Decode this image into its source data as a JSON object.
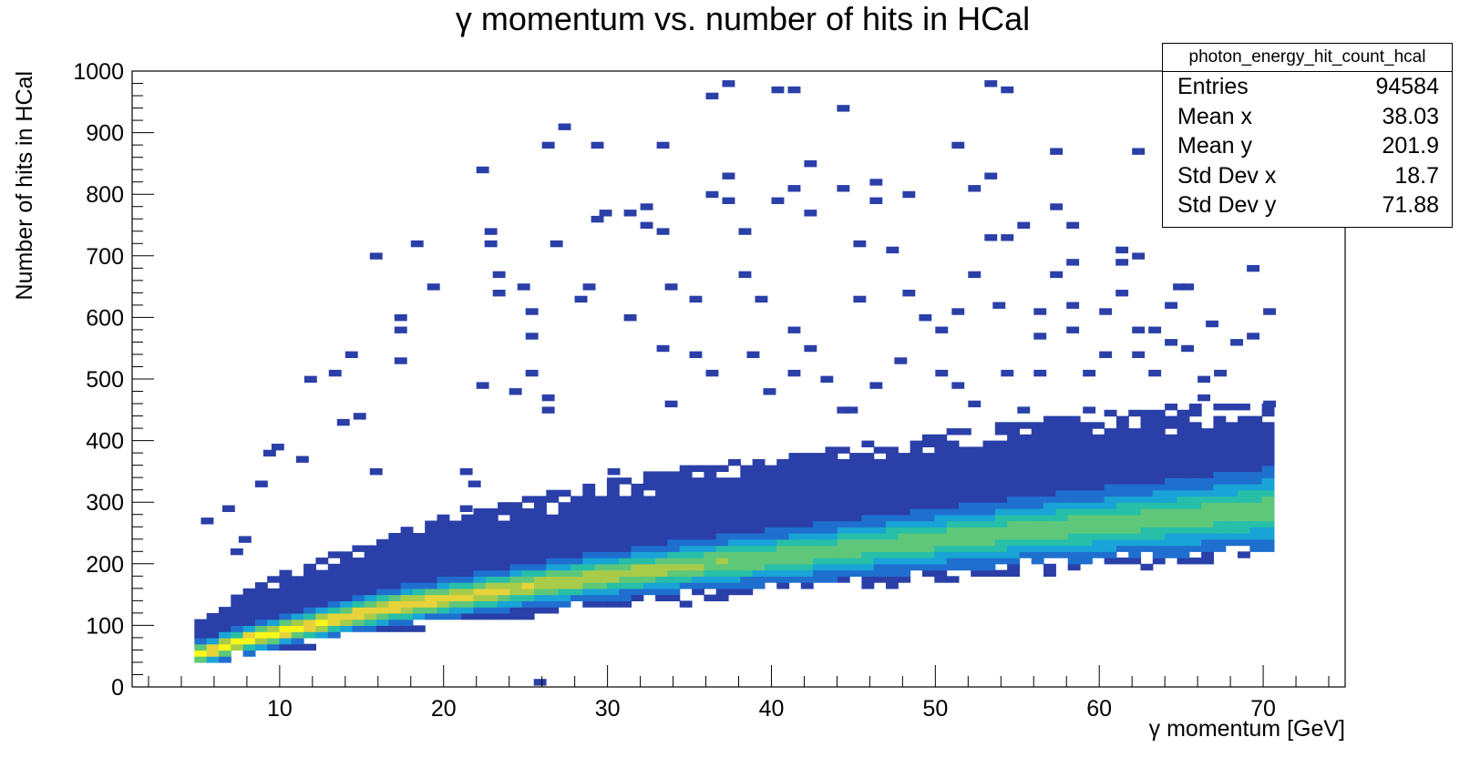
{
  "chart_data": {
    "type": "heatmap",
    "title": "γ momentum vs. number of hits in HCal",
    "xlabel": "γ momentum [GeV]",
    "ylabel": "Number of hits in HCal",
    "xlim": [
      1,
      75
    ],
    "ylim": [
      0,
      1000
    ],
    "x_ticks": [
      10,
      20,
      30,
      40,
      50,
      60,
      70
    ],
    "y_ticks": [
      0,
      100,
      200,
      300,
      400,
      500,
      600,
      700,
      800,
      900,
      1000
    ],
    "bin_width_x": 0.74,
    "bin_width_y": 10,
    "colormap": [
      "#2a3fa8",
      "#1f6fcf",
      "#1aa3d6",
      "#27bfa8",
      "#5fc77a",
      "#a8cc4a",
      "#e6d33a",
      "#f9f71a"
    ],
    "core_ridge": [
      {
        "x": 5.0,
        "y": 55
      },
      {
        "x": 6.0,
        "y": 65
      },
      {
        "x": 8.0,
        "y": 80
      },
      {
        "x": 10.0,
        "y": 92
      },
      {
        "x": 13.0,
        "y": 110
      },
      {
        "x": 16.0,
        "y": 128
      },
      {
        "x": 20.0,
        "y": 145
      },
      {
        "x": 25.0,
        "y": 165
      },
      {
        "x": 30.0,
        "y": 182
      },
      {
        "x": 35.0,
        "y": 198
      },
      {
        "x": 40.0,
        "y": 212
      },
      {
        "x": 45.0,
        "y": 226
      },
      {
        "x": 50.0,
        "y": 240
      },
      {
        "x": 55.0,
        "y": 253
      },
      {
        "x": 60.0,
        "y": 265
      },
      {
        "x": 65.0,
        "y": 277
      },
      {
        "x": 70.0,
        "y": 290
      }
    ],
    "band_halfwidth": [
      {
        "x": 5.0,
        "lo": 20,
        "hi": 60
      },
      {
        "x": 10.0,
        "lo": 35,
        "hi": 90
      },
      {
        "x": 20.0,
        "lo": 45,
        "hi": 130
      },
      {
        "x": 30.0,
        "lo": 55,
        "hi": 150
      },
      {
        "x": 40.0,
        "lo": 60,
        "hi": 160
      },
      {
        "x": 50.0,
        "lo": 65,
        "hi": 170
      },
      {
        "x": 60.0,
        "lo": 70,
        "hi": 180
      },
      {
        "x": 70.0,
        "lo": 75,
        "hi": 170
      }
    ],
    "outliers": [
      [
        5.2,
        265
      ],
      [
        6.5,
        285
      ],
      [
        7.5,
        235
      ],
      [
        8.5,
        325
      ],
      [
        9.5,
        385
      ],
      [
        11.5,
        495
      ],
      [
        13,
        505
      ],
      [
        13.5,
        425
      ],
      [
        14.5,
        435
      ],
      [
        15.5,
        345
      ],
      [
        15.5,
        695
      ],
      [
        17,
        595
      ],
      [
        17,
        575
      ],
      [
        17,
        525
      ],
      [
        18,
        715
      ],
      [
        19,
        645
      ],
      [
        21,
        285
      ],
      [
        21,
        345
      ],
      [
        21.5,
        325
      ],
      [
        22,
        485
      ],
      [
        22.5,
        735
      ],
      [
        22.5,
        715
      ],
      [
        23,
        665
      ],
      [
        23,
        635
      ],
      [
        24.5,
        645
      ],
      [
        25,
        605
      ],
      [
        25,
        565
      ],
      [
        25,
        505
      ],
      [
        26,
        465
      ],
      [
        26,
        445
      ],
      [
        28,
        625
      ],
      [
        28.5,
        645
      ],
      [
        29,
        755
      ],
      [
        29.5,
        765
      ],
      [
        30,
        345
      ],
      [
        31,
        595
      ],
      [
        31,
        765
      ],
      [
        32,
        745
      ],
      [
        32,
        775
      ],
      [
        33,
        735
      ],
      [
        33.5,
        455
      ],
      [
        33.5,
        645
      ],
      [
        35,
        625
      ],
      [
        35,
        535
      ],
      [
        36,
        505
      ],
      [
        36,
        795
      ],
      [
        37,
        825
      ],
      [
        37,
        785
      ],
      [
        38,
        735
      ],
      [
        38,
        665
      ],
      [
        38.5,
        535
      ],
      [
        39,
        625
      ],
      [
        40,
        785
      ],
      [
        41,
        575
      ],
      [
        41,
        505
      ],
      [
        41,
        805
      ],
      [
        42,
        765
      ],
      [
        42,
        545
      ],
      [
        43,
        495
      ],
      [
        44,
        445
      ],
      [
        45,
        625
      ],
      [
        45,
        715
      ],
      [
        46,
        485
      ],
      [
        47,
        705
      ],
      [
        48,
        795
      ],
      [
        48,
        635
      ],
      [
        49,
        595
      ],
      [
        50,
        505
      ],
      [
        50,
        575
      ],
      [
        51,
        605
      ],
      [
        51,
        485
      ],
      [
        52,
        665
      ],
      [
        52,
        455
      ],
      [
        53,
        825
      ],
      [
        53,
        725
      ],
      [
        54,
        725
      ],
      [
        54,
        505
      ],
      [
        55,
        745
      ],
      [
        55,
        445
      ],
      [
        56,
        605
      ],
      [
        56,
        565
      ],
      [
        56,
        505
      ],
      [
        57,
        775
      ],
      [
        57,
        665
      ],
      [
        58,
        745
      ],
      [
        58,
        685
      ],
      [
        58,
        615
      ],
      [
        58,
        575
      ],
      [
        59,
        445
      ],
      [
        59,
        505
      ],
      [
        60,
        535
      ],
      [
        60,
        605
      ],
      [
        61,
        705
      ],
      [
        61,
        685
      ],
      [
        61,
        635
      ],
      [
        62,
        695
      ],
      [
        62,
        575
      ],
      [
        62,
        535
      ],
      [
        63,
        505
      ],
      [
        63,
        575
      ],
      [
        64,
        615
      ],
      [
        64,
        555
      ],
      [
        65,
        645
      ],
      [
        65,
        545
      ],
      [
        66,
        495
      ],
      [
        66,
        465
      ],
      [
        67,
        505
      ],
      [
        68,
        555
      ],
      [
        69,
        565
      ],
      [
        69,
        675
      ],
      [
        70,
        605
      ],
      [
        70,
        455
      ],
      [
        14,
        535
      ],
      [
        11,
        365
      ],
      [
        9,
        375
      ],
      [
        7,
        215
      ],
      [
        24,
        475
      ],
      [
        26.5,
        715
      ],
      [
        33,
        545
      ],
      [
        39.5,
        475
      ],
      [
        44.5,
        445
      ],
      [
        47.5,
        525
      ],
      [
        53.5,
        615
      ],
      [
        64.5,
        645
      ],
      [
        66.5,
        585
      ],
      [
        27,
        905
      ],
      [
        26,
        875
      ],
      [
        29,
        875
      ],
      [
        33,
        875
      ],
      [
        36,
        955
      ],
      [
        37,
        975
      ],
      [
        40,
        965
      ],
      [
        41,
        965
      ],
      [
        44,
        935
      ],
      [
        46,
        815
      ],
      [
        46,
        785
      ],
      [
        51,
        875
      ],
      [
        53,
        975
      ],
      [
        54,
        965
      ],
      [
        57,
        865
      ],
      [
        62,
        865
      ],
      [
        68,
        845
      ],
      [
        52,
        805
      ],
      [
        42,
        845
      ],
      [
        22,
        835
      ],
      [
        44,
        805
      ],
      [
        25.5,
        3
      ]
    ]
  },
  "stats_box": {
    "title": "photon_energy_hit_count_hcal",
    "rows": [
      {
        "label": "Entries",
        "value": "94584"
      },
      {
        "label": "Mean x",
        "value": "38.03"
      },
      {
        "label": "Mean y",
        "value": "201.9"
      },
      {
        "label": "Std Dev x",
        "value": "18.7"
      },
      {
        "label": "Std Dev y",
        "value": "71.88"
      }
    ]
  }
}
